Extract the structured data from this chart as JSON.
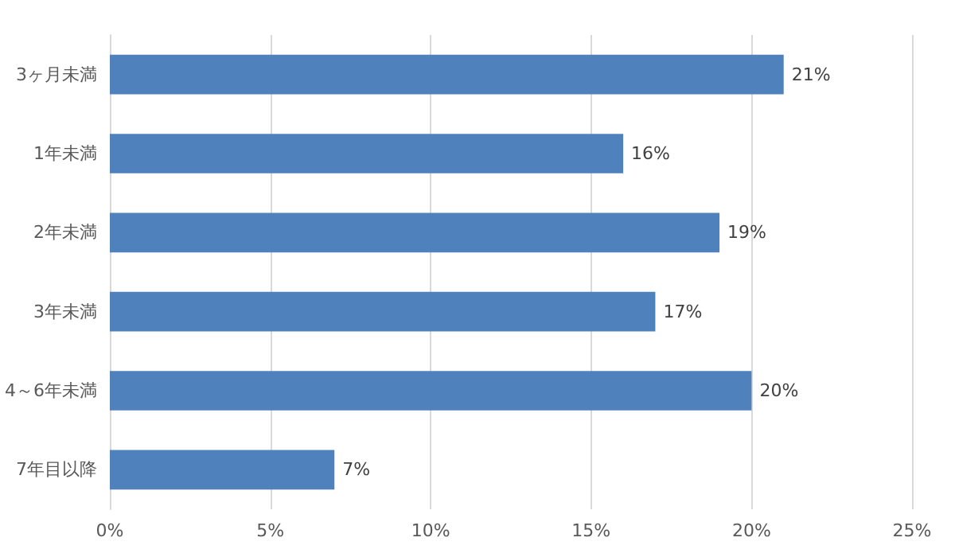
{
  "chart_data": {
    "type": "bar",
    "orientation": "horizontal",
    "categories": [
      "3ヶ月未満",
      "1年未満",
      "2年未満",
      "3年未満",
      "4～6年未満",
      "7年目以降"
    ],
    "values": [
      21,
      16,
      19,
      17,
      20,
      7
    ],
    "color": "#4f81bd",
    "value_labels": [
      "21%",
      "16%",
      "19%",
      "17%",
      "20%",
      "7%"
    ],
    "xlim": [
      0,
      25
    ],
    "xticks": [
      {
        "value": 0,
        "label": "0%"
      },
      {
        "value": 5,
        "label": "5%"
      },
      {
        "value": 10,
        "label": "10%"
      },
      {
        "value": 15,
        "label": "15%"
      },
      {
        "value": 20,
        "label": "20%"
      },
      {
        "value": 25,
        "label": "25%"
      }
    ],
    "grid": "x"
  }
}
